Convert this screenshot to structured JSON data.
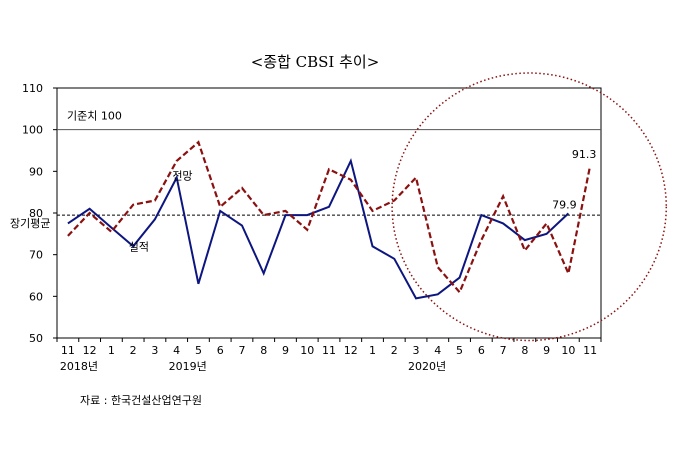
{
  "chart_data": {
    "type": "line",
    "title": "<종합 CBSI 추이>",
    "source": "자료 : 한국건설산업연구원",
    "ylim": [
      50,
      110
    ],
    "yticks": [
      50,
      60,
      70,
      80,
      90,
      100,
      110
    ],
    "categories": [
      "11",
      "12",
      "1",
      "2",
      "3",
      "4",
      "5",
      "6",
      "7",
      "8",
      "9",
      "10",
      "11",
      "12",
      "1",
      "2",
      "3",
      "4",
      "5",
      "6",
      "7",
      "8",
      "9",
      "10",
      "11"
    ],
    "year_labels": [
      {
        "index": 0,
        "label": "2018년"
      },
      {
        "index": 5,
        "label": "2019년"
      },
      {
        "index": 16,
        "label": "2020년"
      }
    ],
    "reference_lines": [
      {
        "label": "기준치 100",
        "value": 100,
        "style": "solid",
        "color": "#555555"
      },
      {
        "label": "장기평균",
        "value": 79.5,
        "style": "dashed",
        "color": "#000000"
      }
    ],
    "series": [
      {
        "name": "실적",
        "color": "#0d1680",
        "dash": "solid",
        "values": [
          77.5,
          81,
          76.5,
          72,
          78.5,
          88.5,
          63,
          80.5,
          77,
          65.5,
          79.5,
          79.5,
          81.5,
          92.5,
          72,
          69,
          59.5,
          60.5,
          64.5,
          79.5,
          77.5,
          73.5,
          75,
          79.9,
          null
        ]
      },
      {
        "name": "전망",
        "color": "#8b1010",
        "dash": "dashed",
        "values": [
          74.5,
          80,
          75.5,
          82,
          83,
          92.5,
          97,
          81.5,
          86,
          79.5,
          80.5,
          76,
          90.5,
          88,
          80.5,
          83,
          88.5,
          67,
          61,
          73.5,
          84,
          71,
          77.5,
          65.5,
          91.3
        ]
      }
    ],
    "data_labels": [
      {
        "series": "실적",
        "index": 23,
        "text": "79.9"
      },
      {
        "series": "전망",
        "index": 24,
        "text": "91.3"
      }
    ],
    "highlight_circle": {
      "color": "#8b1010",
      "style": "dotted"
    },
    "grid": false
  }
}
